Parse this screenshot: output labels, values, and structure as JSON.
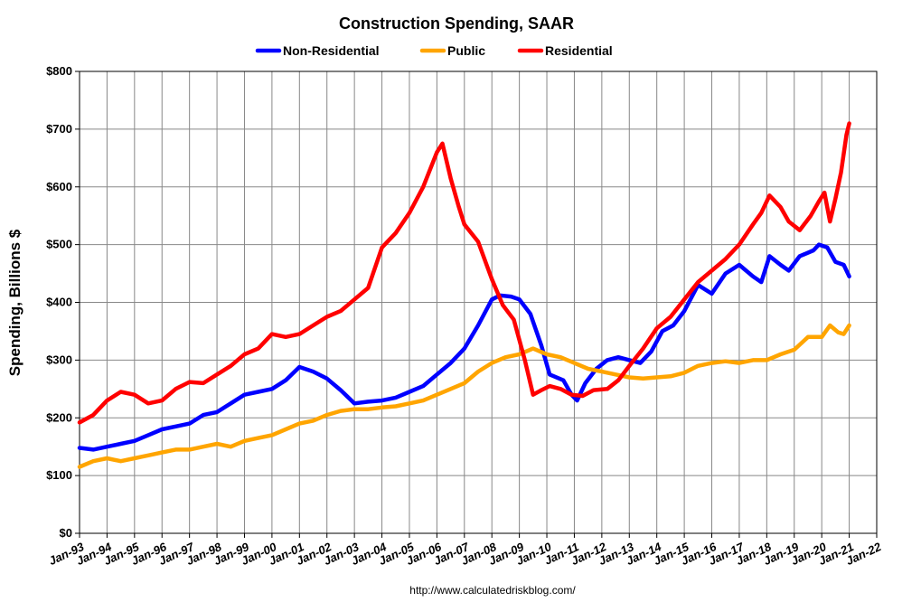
{
  "chart_data": {
    "type": "line",
    "title": "Construction Spending, SAAR",
    "ylabel": "Spending, Billions $",
    "xlabel": "",
    "source": "http://www.calculatedriskblog.com/",
    "ylim": [
      0,
      800
    ],
    "xlim": [
      1993.0,
      2022.0
    ],
    "y_ticks": [
      0,
      100,
      200,
      300,
      400,
      500,
      600,
      700,
      800
    ],
    "y_tick_labels": [
      "$0",
      "$100",
      "$200",
      "$300",
      "$400",
      "$500",
      "$600",
      "$700",
      "$800"
    ],
    "x_tick_labels": [
      "Jan-93",
      "Jan-94",
      "Jan-95",
      "Jan-96",
      "Jan-97",
      "Jan-98",
      "Jan-99",
      "Jan-00",
      "Jan-01",
      "Jan-02",
      "Jan-03",
      "Jan-04",
      "Jan-05",
      "Jan-06",
      "Jan-07",
      "Jan-08",
      "Jan-09",
      "Jan-10",
      "Jan-11",
      "Jan-12",
      "Jan-13",
      "Jan-14",
      "Jan-15",
      "Jan-16",
      "Jan-17",
      "Jan-18",
      "Jan-19",
      "Jan-20",
      "Jan-21",
      "Jan-22"
    ],
    "grid": true,
    "legend_position": "top-center",
    "series": [
      {
        "name": "Non-Residential",
        "color": "#0000ff",
        "points": [
          [
            1993.0,
            148
          ],
          [
            1993.5,
            145
          ],
          [
            1994.0,
            150
          ],
          [
            1994.5,
            155
          ],
          [
            1995.0,
            160
          ],
          [
            1995.5,
            170
          ],
          [
            1996.0,
            180
          ],
          [
            1996.5,
            185
          ],
          [
            1997.0,
            190
          ],
          [
            1997.5,
            205
          ],
          [
            1998.0,
            210
          ],
          [
            1998.5,
            225
          ],
          [
            1999.0,
            240
          ],
          [
            1999.5,
            245
          ],
          [
            2000.0,
            250
          ],
          [
            2000.5,
            265
          ],
          [
            2001.0,
            288
          ],
          [
            2001.5,
            280
          ],
          [
            2002.0,
            268
          ],
          [
            2002.5,
            248
          ],
          [
            2003.0,
            225
          ],
          [
            2003.5,
            228
          ],
          [
            2004.0,
            230
          ],
          [
            2004.5,
            235
          ],
          [
            2005.0,
            245
          ],
          [
            2005.5,
            255
          ],
          [
            2006.0,
            275
          ],
          [
            2006.5,
            295
          ],
          [
            2007.0,
            320
          ],
          [
            2007.5,
            360
          ],
          [
            2008.0,
            405
          ],
          [
            2008.3,
            412
          ],
          [
            2008.7,
            410
          ],
          [
            2009.0,
            405
          ],
          [
            2009.4,
            380
          ],
          [
            2009.8,
            325
          ],
          [
            2010.1,
            275
          ],
          [
            2010.6,
            265
          ],
          [
            2010.9,
            240
          ],
          [
            2011.1,
            230
          ],
          [
            2011.4,
            260
          ],
          [
            2011.8,
            285
          ],
          [
            2012.2,
            300
          ],
          [
            2012.6,
            305
          ],
          [
            2013.0,
            300
          ],
          [
            2013.4,
            295
          ],
          [
            2013.8,
            315
          ],
          [
            2014.2,
            350
          ],
          [
            2014.6,
            360
          ],
          [
            2015.0,
            385
          ],
          [
            2015.5,
            430
          ],
          [
            2016.0,
            415
          ],
          [
            2016.5,
            450
          ],
          [
            2017.0,
            465
          ],
          [
            2017.5,
            445
          ],
          [
            2017.8,
            435
          ],
          [
            2018.1,
            480
          ],
          [
            2018.5,
            465
          ],
          [
            2018.8,
            455
          ],
          [
            2019.2,
            480
          ],
          [
            2019.7,
            490
          ],
          [
            2019.9,
            500
          ],
          [
            2020.2,
            495
          ],
          [
            2020.5,
            470
          ],
          [
            2020.8,
            465
          ],
          [
            2021.0,
            445
          ]
        ]
      },
      {
        "name": "Public",
        "color": "#ffa500",
        "points": [
          [
            1993.0,
            115
          ],
          [
            1993.5,
            125
          ],
          [
            1994.0,
            130
          ],
          [
            1994.5,
            125
          ],
          [
            1995.0,
            130
          ],
          [
            1995.5,
            135
          ],
          [
            1996.0,
            140
          ],
          [
            1996.5,
            145
          ],
          [
            1997.0,
            145
          ],
          [
            1997.5,
            150
          ],
          [
            1998.0,
            155
          ],
          [
            1998.5,
            150
          ],
          [
            1999.0,
            160
          ],
          [
            1999.5,
            165
          ],
          [
            2000.0,
            170
          ],
          [
            2000.5,
            180
          ],
          [
            2001.0,
            190
          ],
          [
            2001.5,
            195
          ],
          [
            2002.0,
            205
          ],
          [
            2002.5,
            212
          ],
          [
            2003.0,
            215
          ],
          [
            2003.5,
            215
          ],
          [
            2004.0,
            218
          ],
          [
            2004.5,
            220
          ],
          [
            2005.0,
            225
          ],
          [
            2005.5,
            230
          ],
          [
            2006.0,
            240
          ],
          [
            2006.5,
            250
          ],
          [
            2007.0,
            260
          ],
          [
            2007.5,
            280
          ],
          [
            2008.0,
            295
          ],
          [
            2008.5,
            305
          ],
          [
            2009.0,
            310
          ],
          [
            2009.5,
            320
          ],
          [
            2010.0,
            310
          ],
          [
            2010.5,
            305
          ],
          [
            2011.0,
            295
          ],
          [
            2011.5,
            285
          ],
          [
            2012.0,
            280
          ],
          [
            2012.5,
            275
          ],
          [
            2013.0,
            270
          ],
          [
            2013.5,
            268
          ],
          [
            2014.0,
            270
          ],
          [
            2014.5,
            272
          ],
          [
            2015.0,
            278
          ],
          [
            2015.5,
            290
          ],
          [
            2016.0,
            295
          ],
          [
            2016.5,
            298
          ],
          [
            2017.0,
            295
          ],
          [
            2017.5,
            300
          ],
          [
            2018.0,
            300
          ],
          [
            2018.5,
            310
          ],
          [
            2019.0,
            318
          ],
          [
            2019.5,
            340
          ],
          [
            2020.0,
            340
          ],
          [
            2020.3,
            360
          ],
          [
            2020.6,
            348
          ],
          [
            2020.8,
            345
          ],
          [
            2021.0,
            360
          ]
        ]
      },
      {
        "name": "Residential",
        "color": "#ff0000",
        "points": [
          [
            1993.0,
            192
          ],
          [
            1993.5,
            205
          ],
          [
            1994.0,
            230
          ],
          [
            1994.5,
            245
          ],
          [
            1995.0,
            240
          ],
          [
            1995.5,
            225
          ],
          [
            1996.0,
            230
          ],
          [
            1996.5,
            250
          ],
          [
            1997.0,
            262
          ],
          [
            1997.5,
            260
          ],
          [
            1998.0,
            275
          ],
          [
            1998.5,
            290
          ],
          [
            1999.0,
            310
          ],
          [
            1999.5,
            320
          ],
          [
            2000.0,
            345
          ],
          [
            2000.5,
            340
          ],
          [
            2001.0,
            345
          ],
          [
            2001.5,
            360
          ],
          [
            2002.0,
            375
          ],
          [
            2002.5,
            385
          ],
          [
            2003.0,
            405
          ],
          [
            2003.5,
            425
          ],
          [
            2004.0,
            495
          ],
          [
            2004.5,
            520
          ],
          [
            2005.0,
            555
          ],
          [
            2005.5,
            600
          ],
          [
            2006.0,
            660
          ],
          [
            2006.2,
            675
          ],
          [
            2006.5,
            615
          ],
          [
            2006.8,
            565
          ],
          [
            2007.0,
            535
          ],
          [
            2007.5,
            505
          ],
          [
            2008.0,
            440
          ],
          [
            2008.4,
            395
          ],
          [
            2008.8,
            370
          ],
          [
            2009.2,
            300
          ],
          [
            2009.5,
            240
          ],
          [
            2009.8,
            248
          ],
          [
            2010.1,
            255
          ],
          [
            2010.5,
            250
          ],
          [
            2010.9,
            240
          ],
          [
            2011.3,
            238
          ],
          [
            2011.7,
            248
          ],
          [
            2012.2,
            250
          ],
          [
            2012.6,
            265
          ],
          [
            2013.0,
            290
          ],
          [
            2013.5,
            320
          ],
          [
            2014.0,
            355
          ],
          [
            2014.5,
            375
          ],
          [
            2015.0,
            405
          ],
          [
            2015.5,
            435
          ],
          [
            2016.0,
            455
          ],
          [
            2016.5,
            475
          ],
          [
            2017.0,
            500
          ],
          [
            2017.5,
            535
          ],
          [
            2017.8,
            555
          ],
          [
            2018.1,
            585
          ],
          [
            2018.5,
            565
          ],
          [
            2018.8,
            540
          ],
          [
            2019.2,
            525
          ],
          [
            2019.6,
            550
          ],
          [
            2019.9,
            575
          ],
          [
            2020.1,
            590
          ],
          [
            2020.3,
            540
          ],
          [
            2020.5,
            580
          ],
          [
            2020.7,
            625
          ],
          [
            2020.9,
            690
          ],
          [
            2021.0,
            710
          ]
        ]
      }
    ]
  }
}
